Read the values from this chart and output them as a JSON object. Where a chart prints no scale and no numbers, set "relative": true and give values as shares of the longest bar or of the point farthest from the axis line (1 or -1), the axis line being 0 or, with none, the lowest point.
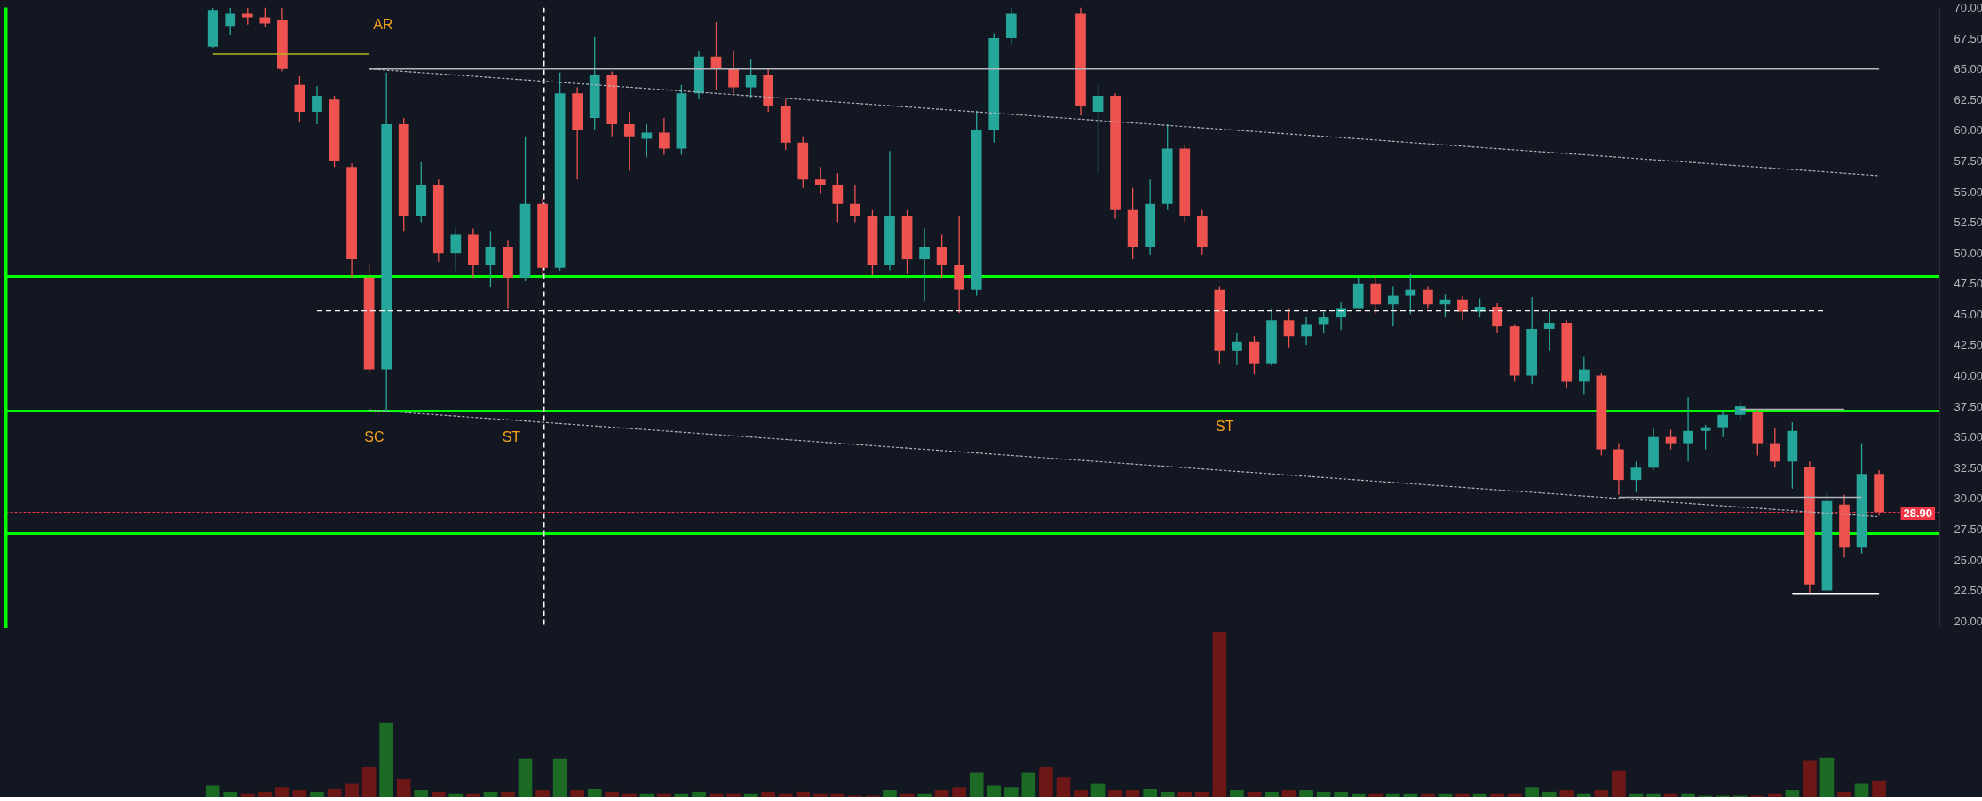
{
  "chart_data": [
    {
      "type": "candlestick",
      "categories": [
        null,
        null,
        null,
        null,
        null,
        null,
        null,
        null,
        null,
        null,
        null,
        null,
        null,
        null,
        null,
        null,
        null,
        null,
        null,
        null,
        null,
        null,
        null,
        null,
        null,
        null,
        null,
        null,
        null,
        null,
        null,
        null,
        null,
        null,
        null,
        null,
        null,
        null,
        null,
        null,
        null,
        null,
        null,
        null,
        null,
        null,
        null,
        null,
        null,
        null,
        null,
        null,
        null,
        null,
        null,
        null,
        null,
        null,
        null,
        null,
        null,
        null,
        null,
        null,
        null,
        null,
        null,
        null,
        null,
        null,
        null,
        null,
        null,
        null,
        null,
        null,
        null,
        null,
        null,
        null,
        null,
        null,
        null,
        null,
        null,
        null,
        null,
        null,
        null,
        null,
        null,
        null,
        null,
        null,
        null,
        null,
        null
      ],
      "ohlc": [
        [
          66.8,
          70,
          66.7,
          69.8
        ],
        [
          68.5,
          70,
          67.8,
          69.5
        ],
        [
          69.5,
          70,
          68.6,
          69.2
        ],
        [
          69.2,
          70,
          68.4,
          68.7
        ],
        [
          69,
          70,
          64.8,
          65
        ],
        [
          63.7,
          64.4,
          60.7,
          61.5
        ],
        [
          61.5,
          63.6,
          60.5,
          62.8
        ],
        [
          62.5,
          62.8,
          57,
          57.5
        ],
        [
          57,
          57.3,
          48,
          49.5
        ],
        [
          48,
          49,
          40.2,
          40.5
        ],
        [
          40.5,
          64.7,
          37.1,
          60.5
        ],
        [
          60.5,
          61,
          51.8,
          53
        ],
        [
          53,
          57.4,
          52.5,
          55.5
        ],
        [
          55.5,
          56,
          49.3,
          50
        ],
        [
          50,
          52,
          48.5,
          51.5
        ],
        [
          51.5,
          52,
          48,
          49
        ],
        [
          49,
          51.8,
          47.2,
          50.5
        ],
        [
          50.5,
          51,
          45.5,
          48
        ],
        [
          48,
          59.5,
          47.7,
          54
        ],
        [
          54,
          54.5,
          48.2,
          48.8
        ],
        [
          48.8,
          64.7,
          48.5,
          63
        ],
        [
          63,
          63.5,
          56,
          60
        ],
        [
          61,
          67.6,
          60,
          64.5
        ],
        [
          64.5,
          64.8,
          59.5,
          60.5
        ],
        [
          60.5,
          61.5,
          56.7,
          59.5
        ],
        [
          59.3,
          60.5,
          57.8,
          59.8
        ],
        [
          59.8,
          61,
          58,
          58.5
        ],
        [
          58.5,
          63.7,
          58,
          63
        ],
        [
          63,
          66.5,
          62.5,
          66
        ],
        [
          66,
          68.8,
          63.3,
          65
        ],
        [
          65,
          66.5,
          63,
          63.5
        ],
        [
          63.5,
          65.8,
          62.6,
          64.5
        ],
        [
          64.5,
          65,
          61.5,
          62
        ],
        [
          62,
          62.5,
          58.4,
          59
        ],
        [
          59,
          59.5,
          55.3,
          56
        ],
        [
          56,
          57,
          54.8,
          55.5
        ],
        [
          55.5,
          56.5,
          52.5,
          54
        ],
        [
          54,
          55.5,
          52.5,
          53
        ],
        [
          53,
          53.5,
          48.2,
          49
        ],
        [
          49,
          58.3,
          48.6,
          53
        ],
        [
          53,
          53.5,
          48.3,
          49.5
        ],
        [
          49.5,
          52,
          46.1,
          50.5
        ],
        [
          50.5,
          51.5,
          48,
          49
        ],
        [
          49,
          53,
          45.1,
          47
        ],
        [
          47,
          61.6,
          46.5,
          60
        ],
        [
          60,
          67.9,
          59,
          67.5
        ],
        [
          67.5,
          70,
          67,
          69.5
        ],
        null,
        null,
        null,
        [
          69.5,
          70,
          61.2,
          62
        ],
        [
          61.5,
          63.7,
          56.5,
          62.8
        ],
        [
          62.8,
          63,
          52.8,
          53.5
        ],
        [
          53.5,
          55.3,
          49.5,
          50.5
        ],
        [
          50.5,
          56,
          49.8,
          54
        ],
        [
          54,
          60.5,
          53.5,
          58.5
        ],
        [
          58.5,
          58.8,
          52.5,
          53
        ],
        [
          53,
          53.5,
          49.8,
          50.5
        ],
        [
          47,
          47.3,
          41,
          42
        ],
        [
          42,
          43.5,
          40.9,
          42.8
        ],
        [
          42.8,
          43.2,
          40.1,
          41
        ],
        [
          41,
          45.5,
          40.8,
          44.5
        ],
        [
          44.5,
          45.5,
          42.3,
          43.2
        ],
        [
          43.2,
          44.8,
          42.5,
          44.2
        ],
        [
          44.2,
          45.2,
          43.5,
          44.8
        ],
        [
          44.8,
          46,
          43.7,
          45.5
        ],
        [
          45.5,
          48,
          45.5,
          47.5
        ],
        [
          47.5,
          48.2,
          45,
          45.8
        ],
        [
          45.8,
          47.3,
          44,
          46.5
        ],
        [
          46.5,
          48.3,
          45,
          47
        ],
        [
          47,
          47.3,
          45.5,
          45.8
        ],
        [
          45.8,
          46.6,
          44.8,
          46.2
        ],
        [
          46.2,
          46.5,
          44.5,
          45.2
        ],
        [
          45.2,
          46.3,
          44.8,
          45.6
        ],
        [
          45.6,
          45.9,
          43.5,
          44
        ],
        [
          44,
          44.2,
          39.5,
          40
        ],
        [
          40,
          46.4,
          39.3,
          43.8
        ],
        [
          43.8,
          45.2,
          42,
          44.3
        ],
        [
          44.3,
          44.5,
          39,
          39.5
        ],
        [
          39.5,
          41.6,
          38.5,
          40.5
        ],
        [
          40,
          40.2,
          33.5,
          34
        ],
        [
          34,
          34.5,
          30.3,
          31.5
        ],
        [
          31.5,
          33,
          30.5,
          32.5
        ],
        [
          32.5,
          35.7,
          32.3,
          35
        ],
        [
          35,
          35.6,
          34,
          34.5
        ],
        [
          34.5,
          38.3,
          33,
          35.5
        ],
        [
          35.5,
          36,
          34,
          35.8
        ],
        [
          35.8,
          37.2,
          35,
          36.8
        ],
        [
          36.8,
          37.8,
          36.5,
          37.5
        ],
        [
          37,
          37.2,
          33.5,
          34.5
        ],
        [
          34.5,
          35.7,
          32.5,
          33
        ],
        [
          33,
          36.2,
          30.8,
          35.5
        ],
        [
          32.6,
          33,
          22.3,
          23
        ],
        [
          22.5,
          30.5,
          22.3,
          29.8
        ],
        [
          29.5,
          30.3,
          25.2,
          26
        ],
        [
          26,
          34.5,
          25.5,
          32
        ],
        [
          32,
          32.3,
          28.6,
          28.9
        ]
      ],
      "colors": [
        "#26a69a",
        "#26a69a",
        "#ef5350",
        "#ef5350",
        "#ef5350",
        "#ef5350",
        "#26a69a",
        "#ef5350",
        "#ef5350",
        "#ef5350",
        "#26a69a",
        "#ef5350",
        "#26a69a",
        "#ef5350",
        "#26a69a",
        "#ef5350",
        "#26a69a",
        "#ef5350",
        "#26a69a",
        "#ef5350",
        "#26a69a",
        "#ef5350",
        "#26a69a",
        "#ef5350",
        "#ef5350",
        "#26a69a",
        "#ef5350",
        "#26a69a",
        "#26a69a",
        "#ef5350",
        "#ef5350",
        "#26a69a",
        "#ef5350",
        "#ef5350",
        "#ef5350",
        "#ef5350",
        "#ef5350",
        "#ef5350",
        "#ef5350",
        "#26a69a",
        "#ef5350",
        "#26a69a",
        "#ef5350",
        "#ef5350",
        "#26a69a",
        "#26a69a",
        "#26a69a",
        null,
        null,
        null,
        "#ef5350",
        "#26a69a",
        "#ef5350",
        "#ef5350",
        "#26a69a",
        "#26a69a",
        "#ef5350",
        "#ef5350",
        "#ef5350",
        "#26a69a",
        "#ef5350",
        "#26a69a",
        "#ef5350",
        "#26a69a",
        "#26a69a",
        "#26a69a",
        "#26a69a",
        "#ef5350",
        "#26a69a",
        "#26a69a",
        "#ef5350",
        "#26a69a",
        "#ef5350",
        "#26a69a",
        "#ef5350",
        "#ef5350",
        "#26a69a",
        "#26a69a",
        "#ef5350",
        "#26a69a",
        "#ef5350",
        "#ef5350",
        "#26a69a",
        "#26a69a",
        "#ef5350",
        "#26a69a",
        "#26a69a",
        "#26a69a",
        "#26a69a",
        "#ef5350",
        "#ef5350",
        "#26a69a",
        "#ef5350",
        "#26a69a",
        "#ef5350",
        "#26a69a",
        "#ef5350"
      ],
      "series": [
        {
          "type": "line",
          "color": "#b5b518",
          "line_style": "solid",
          "values": [
            66.2,
            66.2,
            66.2,
            66.2,
            66.2,
            66.2,
            66.2,
            66.2,
            66.2,
            66.2,
            null,
            null,
            null,
            null,
            null,
            null,
            null,
            null,
            null,
            null,
            null,
            null,
            null,
            null,
            null,
            null,
            null,
            null,
            null,
            null,
            null,
            null,
            null,
            null,
            null,
            null,
            null,
            null,
            null,
            null,
            null,
            null,
            null,
            null,
            null,
            null,
            null,
            null,
            null,
            null,
            null,
            null,
            null,
            null,
            null,
            null,
            null,
            null,
            null,
            null,
            null,
            null,
            null,
            null,
            null,
            null,
            null,
            null,
            null,
            null,
            null,
            null,
            null,
            null,
            null,
            null,
            null,
            null,
            null,
            null,
            null,
            null,
            null,
            null,
            null,
            null,
            null,
            null,
            null,
            null,
            null,
            null,
            null,
            null,
            null,
            null,
            null
          ]
        },
        {
          "type": "line",
          "color": "#b2b5be",
          "line_style": "solid",
          "values": [
            null,
            null,
            null,
            null,
            null,
            null,
            null,
            null,
            null,
            65,
            65,
            65,
            65,
            65,
            65,
            65,
            65,
            65,
            65,
            65,
            65,
            65,
            65,
            65,
            65,
            65,
            65,
            65,
            65,
            65,
            65,
            65,
            65,
            65,
            65,
            65,
            65,
            65,
            65,
            65,
            65,
            65,
            65,
            65,
            65,
            65,
            65,
            65,
            65,
            65,
            65,
            65,
            65,
            65,
            65,
            65,
            65,
            65,
            65,
            65,
            65,
            65,
            65,
            65,
            65,
            65,
            65,
            65,
            65,
            65,
            65,
            65,
            65,
            65,
            65,
            65,
            65,
            65,
            65,
            65,
            65,
            65,
            65,
            65,
            65,
            65,
            65,
            65,
            65,
            65,
            65,
            65,
            65,
            65,
            65,
            65,
            65
          ]
        },
        {
          "type": "line",
          "color": "#b2b5be",
          "line_style": "dotted",
          "values": [
            null,
            null,
            null,
            null,
            null,
            null,
            null,
            null,
            null,
            65.0,
            64.9,
            64.8,
            64.7,
            64.6,
            64.5,
            64.4,
            64.3,
            64.2,
            64.1,
            64.0,
            63.9,
            63.8,
            63.7,
            63.6,
            63.5,
            63.4,
            63.3,
            63.2,
            63.1,
            63.0,
            62.9,
            62.8,
            62.7,
            62.6,
            62.5,
            62.4,
            62.3,
            62.2,
            62.1,
            62.0,
            61.9,
            61.8,
            61.7,
            61.6,
            61.5,
            61.4,
            61.3,
            61.2,
            61.1,
            61.0,
            60.9,
            60.8,
            60.7,
            60.6,
            60.5,
            60.4,
            60.3,
            60.2,
            60.1,
            60.0,
            59.9,
            59.8,
            59.7,
            59.6,
            59.5,
            59.4,
            59.3,
            59.2,
            59.1,
            59.0,
            58.9,
            58.8,
            58.7,
            58.6,
            58.5,
            58.4,
            58.3,
            58.2,
            58.1,
            58.0,
            57.9,
            57.8,
            57.7,
            57.6,
            57.5,
            57.4,
            57.3,
            57.2,
            57.1,
            57.0,
            56.9,
            56.8,
            56.7,
            56.6,
            56.5,
            56.4,
            56.3
          ]
        },
        {
          "type": "line",
          "color": "#b2b5be",
          "line_style": "dotted",
          "values": [
            null,
            null,
            null,
            null,
            null,
            null,
            null,
            null,
            null,
            37.2,
            37.1,
            37.0,
            36.9,
            36.8,
            36.7,
            36.6,
            36.5,
            36.4,
            36.3,
            36.2,
            36.1,
            36.0,
            35.9,
            35.8,
            35.7,
            35.6,
            35.5,
            35.4,
            35.3,
            35.2,
            35.1,
            35.0,
            34.9,
            34.8,
            34.7,
            34.6,
            34.5,
            34.4,
            34.3,
            34.2,
            34.1,
            34.0,
            33.9,
            33.8,
            33.7,
            33.6,
            33.5,
            33.4,
            33.3,
            33.2,
            33.1,
            33.0,
            32.9,
            32.8,
            32.7,
            32.6,
            32.5,
            32.4,
            32.3,
            32.2,
            32.1,
            32.0,
            31.9,
            31.8,
            31.7,
            31.6,
            31.5,
            31.4,
            31.3,
            31.2,
            31.1,
            31.0,
            30.9,
            30.8,
            30.7,
            30.6,
            30.5,
            30.4,
            30.3,
            30.2,
            30.1,
            30.0,
            29.9,
            29.8,
            29.7,
            29.6,
            29.5,
            29.4,
            29.3,
            29.2,
            29.1,
            29.0,
            28.9,
            28.8,
            28.7,
            28.6,
            28.5
          ]
        },
        {
          "type": "line",
          "color": "#ffffff",
          "line_style": "dashed",
          "values": [
            null,
            null,
            null,
            null,
            null,
            null,
            45.3,
            45.3,
            45.3,
            45.3,
            45.3,
            45.3,
            45.3,
            45.3,
            45.3,
            45.3,
            45.3,
            45.3,
            45.3,
            45.3,
            45.3,
            45.3,
            45.3,
            45.3,
            45.3,
            45.3,
            45.3,
            45.3,
            45.3,
            45.3,
            45.3,
            45.3,
            45.3,
            45.3,
            45.3,
            45.3,
            45.3,
            45.3,
            45.3,
            45.3,
            45.3,
            45.3,
            45.3,
            45.3,
            45.3,
            45.3,
            45.3,
            45.3,
            45.3,
            45.3,
            45.3,
            45.3,
            45.3,
            45.3,
            45.3,
            45.3,
            45.3,
            45.3,
            45.3,
            45.3,
            45.3,
            45.3,
            45.3,
            45.3,
            45.3,
            45.3,
            45.3,
            45.3,
            45.3,
            45.3,
            45.3,
            45.3,
            45.3,
            45.3,
            45.3,
            45.3,
            45.3,
            45.3,
            45.3,
            45.3,
            45.3,
            45.3,
            45.3,
            45.3,
            45.3,
            45.3,
            45.3,
            45.3,
            45.3,
            45.3,
            45.3,
            45.3,
            45.3,
            45.3,
            null,
            null,
            null
          ]
        },
        {
          "type": "line",
          "color": "#b2b5be",
          "line_style": "solid",
          "values": [
            null,
            null,
            null,
            null,
            null,
            null,
            null,
            null,
            null,
            null,
            null,
            null,
            null,
            null,
            null,
            null,
            null,
            null,
            null,
            null,
            null,
            null,
            null,
            null,
            null,
            null,
            null,
            null,
            null,
            null,
            null,
            null,
            null,
            null,
            null,
            null,
            null,
            null,
            null,
            null,
            null,
            null,
            null,
            null,
            null,
            null,
            null,
            null,
            null,
            null,
            null,
            null,
            null,
            null,
            null,
            null,
            null,
            null,
            null,
            null,
            null,
            null,
            null,
            null,
            null,
            null,
            null,
            null,
            null,
            null,
            null,
            null,
            null,
            null,
            null,
            null,
            null,
            null,
            null,
            null,
            null,
            null,
            null,
            null,
            null,
            null,
            null,
            null,
            37.25,
            37.25,
            37.25,
            37.25,
            37.25,
            37.25,
            37.25,
            null,
            null
          ]
        },
        {
          "type": "line",
          "color": "#b2b5be",
          "line_style": "solid",
          "values": [
            null,
            null,
            null,
            null,
            null,
            null,
            null,
            null,
            null,
            null,
            null,
            null,
            null,
            null,
            null,
            null,
            null,
            null,
            null,
            null,
            null,
            null,
            null,
            null,
            null,
            null,
            null,
            null,
            null,
            null,
            null,
            null,
            null,
            null,
            null,
            null,
            null,
            null,
            null,
            null,
            null,
            null,
            null,
            null,
            null,
            null,
            null,
            null,
            null,
            null,
            null,
            null,
            null,
            null,
            null,
            null,
            null,
            null,
            null,
            null,
            null,
            null,
            null,
            null,
            null,
            null,
            null,
            null,
            null,
            null,
            null,
            null,
            null,
            null,
            null,
            null,
            null,
            null,
            null,
            null,
            null,
            30.1,
            30.1,
            30.1,
            30.1,
            30.1,
            30.1,
            30.1,
            30.1,
            30.1,
            30.1,
            30.1,
            30.1,
            30.1,
            30.1,
            30.1,
            null
          ]
        },
        {
          "type": "line",
          "color": "#ffffff",
          "line_style": "solid",
          "values": [
            null,
            null,
            null,
            null,
            null,
            null,
            null,
            null,
            null,
            null,
            null,
            null,
            null,
            null,
            null,
            null,
            null,
            null,
            null,
            null,
            null,
            null,
            null,
            null,
            null,
            null,
            null,
            null,
            null,
            null,
            null,
            null,
            null,
            null,
            null,
            null,
            null,
            null,
            null,
            null,
            null,
            null,
            null,
            null,
            null,
            null,
            null,
            null,
            null,
            null,
            null,
            null,
            null,
            null,
            null,
            null,
            null,
            null,
            null,
            null,
            null,
            null,
            null,
            null,
            null,
            null,
            null,
            null,
            null,
            null,
            null,
            null,
            null,
            null,
            null,
            null,
            null,
            null,
            null,
            null,
            null,
            null,
            null,
            null,
            null,
            null,
            null,
            null,
            null,
            null,
            null,
            22.2,
            22.2,
            22.2,
            22.2,
            22.2,
            22.2
          ]
        }
      ],
      "ref_lines": [
        {
          "axis": "y",
          "value": 48.1,
          "color": "#00ff00",
          "line_style": "solid"
        },
        {
          "axis": "y",
          "value": 37.1,
          "color": "#00ff00",
          "line_style": "solid"
        },
        {
          "axis": "y",
          "value": 27.1,
          "color": "#00ff00",
          "line_style": "solid"
        },
        {
          "axis": "y",
          "value": 28.9,
          "label": "28.90",
          "color": "#f23645",
          "line_style": "dotted"
        }
      ],
      "annotations": [
        "AR",
        "SC",
        "ST",
        "ST"
      ],
      "ylim": [
        19.4,
        70
      ],
      "yticks": [
        {
          "value": 20,
          "label": "20.00"
        },
        {
          "value": 22.5,
          "label": "22.50"
        },
        {
          "value": 25,
          "label": "25.00"
        },
        {
          "value": 27.5,
          "label": "27.50"
        },
        {
          "value": 30,
          "label": "30.00"
        },
        {
          "value": 32.5,
          "label": "32.50"
        },
        {
          "value": 35,
          "label": "35.00"
        },
        {
          "value": 37.5,
          "label": "37.50"
        },
        {
          "value": 40,
          "label": "40.00"
        },
        {
          "value": 42.5,
          "label": "42.50"
        },
        {
          "value": 45,
          "label": "45.00"
        },
        {
          "value": 47.5,
          "label": "47.50"
        },
        {
          "value": 50,
          "label": "50.00"
        },
        {
          "value": 52.5,
          "label": "52.50"
        },
        {
          "value": 55,
          "label": "55.00"
        },
        {
          "value": 57.5,
          "label": "57.50"
        },
        {
          "value": 60,
          "label": "60.00"
        },
        {
          "value": 62.5,
          "label": "62.50"
        },
        {
          "value": 65,
          "label": "65.00"
        },
        {
          "value": 67.5,
          "label": "67.50"
        },
        {
          "value": 70,
          "label": "70.00"
        }
      ],
      "tick_labels": "y"
    },
    {
      "type": "bar",
      "relative": true,
      "categories": [
        null,
        null,
        null,
        null,
        null,
        null,
        null,
        null,
        null,
        null,
        null,
        null,
        null,
        null,
        null,
        null,
        null,
        null,
        null,
        null,
        null,
        null,
        null,
        null,
        null,
        null,
        null,
        null,
        null,
        null,
        null,
        null,
        null,
        null,
        null,
        null,
        null,
        null,
        null,
        null,
        null,
        null,
        null,
        null,
        null,
        null,
        null,
        null,
        null,
        null,
        null,
        null,
        null,
        null,
        null,
        null,
        null,
        null,
        null,
        null,
        null,
        null,
        null,
        null,
        null,
        null,
        null,
        null,
        null,
        null,
        null,
        null,
        null,
        null,
        null,
        null,
        null,
        null,
        null,
        null,
        null,
        null,
        null,
        null,
        null,
        null,
        null,
        null,
        null,
        null,
        null,
        null,
        null,
        null,
        null,
        null,
        null
      ],
      "values": [
        0.07,
        0.03,
        0.02,
        0.03,
        0.06,
        0.04,
        0.03,
        0.05,
        0.08,
        0.18,
        0.45,
        0.11,
        0.04,
        0.03,
        0.02,
        0.02,
        0.03,
        0.03,
        0.23,
        0.04,
        0.23,
        0.04,
        0.05,
        0.03,
        0.02,
        0.02,
        0.02,
        0.02,
        0.03,
        0.02,
        0.02,
        0.02,
        0.03,
        0.02,
        0.03,
        0.02,
        0.02,
        0.01,
        0.01,
        0.04,
        0.02,
        0.02,
        0.04,
        0.06,
        0.15,
        0.07,
        0.06,
        0.15,
        0.18,
        0.12,
        0.04,
        0.08,
        0.04,
        0.04,
        0.05,
        0.03,
        0.03,
        0.03,
        1,
        0.04,
        0.03,
        0.03,
        0.04,
        0.04,
        0.03,
        0.03,
        0.02,
        0.02,
        0.02,
        0.02,
        0.02,
        0.02,
        0.02,
        0.02,
        0.02,
        0.02,
        0.06,
        0.03,
        0.04,
        0.02,
        0.04,
        0.16,
        0.02,
        0.02,
        0.02,
        0.02,
        0.01,
        0.01,
        0.01,
        0.01,
        0.02,
        0.04,
        0.22,
        0.24,
        0.03,
        0.08,
        0.1
      ],
      "colors": [
        "#1d6a25",
        "#1d6a25",
        "#6e1717",
        "#6e1717",
        "#6e1717",
        "#6e1717",
        "#1d6a25",
        "#6e1717",
        "#6e1717",
        "#6e1717",
        "#1d6a25",
        "#6e1717",
        "#1d6a25",
        "#6e1717",
        "#1d6a25",
        "#6e1717",
        "#1d6a25",
        "#6e1717",
        "#1d6a25",
        "#6e1717",
        "#1d6a25",
        "#6e1717",
        "#1d6a25",
        "#6e1717",
        "#6e1717",
        "#1d6a25",
        "#6e1717",
        "#1d6a25",
        "#1d6a25",
        "#6e1717",
        "#6e1717",
        "#1d6a25",
        "#6e1717",
        "#6e1717",
        "#6e1717",
        "#6e1717",
        "#6e1717",
        "#6e1717",
        "#6e1717",
        "#1d6a25",
        "#6e1717",
        "#1d6a25",
        "#6e1717",
        "#6e1717",
        "#1d6a25",
        "#1d6a25",
        "#1d6a25",
        "#1d6a25",
        "#6e1717",
        "#6e1717",
        "#6e1717",
        "#1d6a25",
        "#6e1717",
        "#6e1717",
        "#1d6a25",
        "#1d6a25",
        "#6e1717",
        "#6e1717",
        "#6e1717",
        "#1d6a25",
        "#6e1717",
        "#1d6a25",
        "#6e1717",
        "#1d6a25",
        "#1d6a25",
        "#1d6a25",
        "#1d6a25",
        "#6e1717",
        "#1d6a25",
        "#1d6a25",
        "#6e1717",
        "#1d6a25",
        "#6e1717",
        "#1d6a25",
        "#6e1717",
        "#6e1717",
        "#1d6a25",
        "#1d6a25",
        "#6e1717",
        "#1d6a25",
        "#6e1717",
        "#6e1717",
        "#1d6a25",
        "#1d6a25",
        "#6e1717",
        "#1d6a25",
        "#1d6a25",
        "#1d6a25",
        "#1d6a25",
        "#6e1717",
        "#6e1717",
        "#1d6a25",
        "#6e1717",
        "#1d6a25",
        "#6e1717",
        "#1d6a25",
        "#6e1717"
      ]
    }
  ]
}
